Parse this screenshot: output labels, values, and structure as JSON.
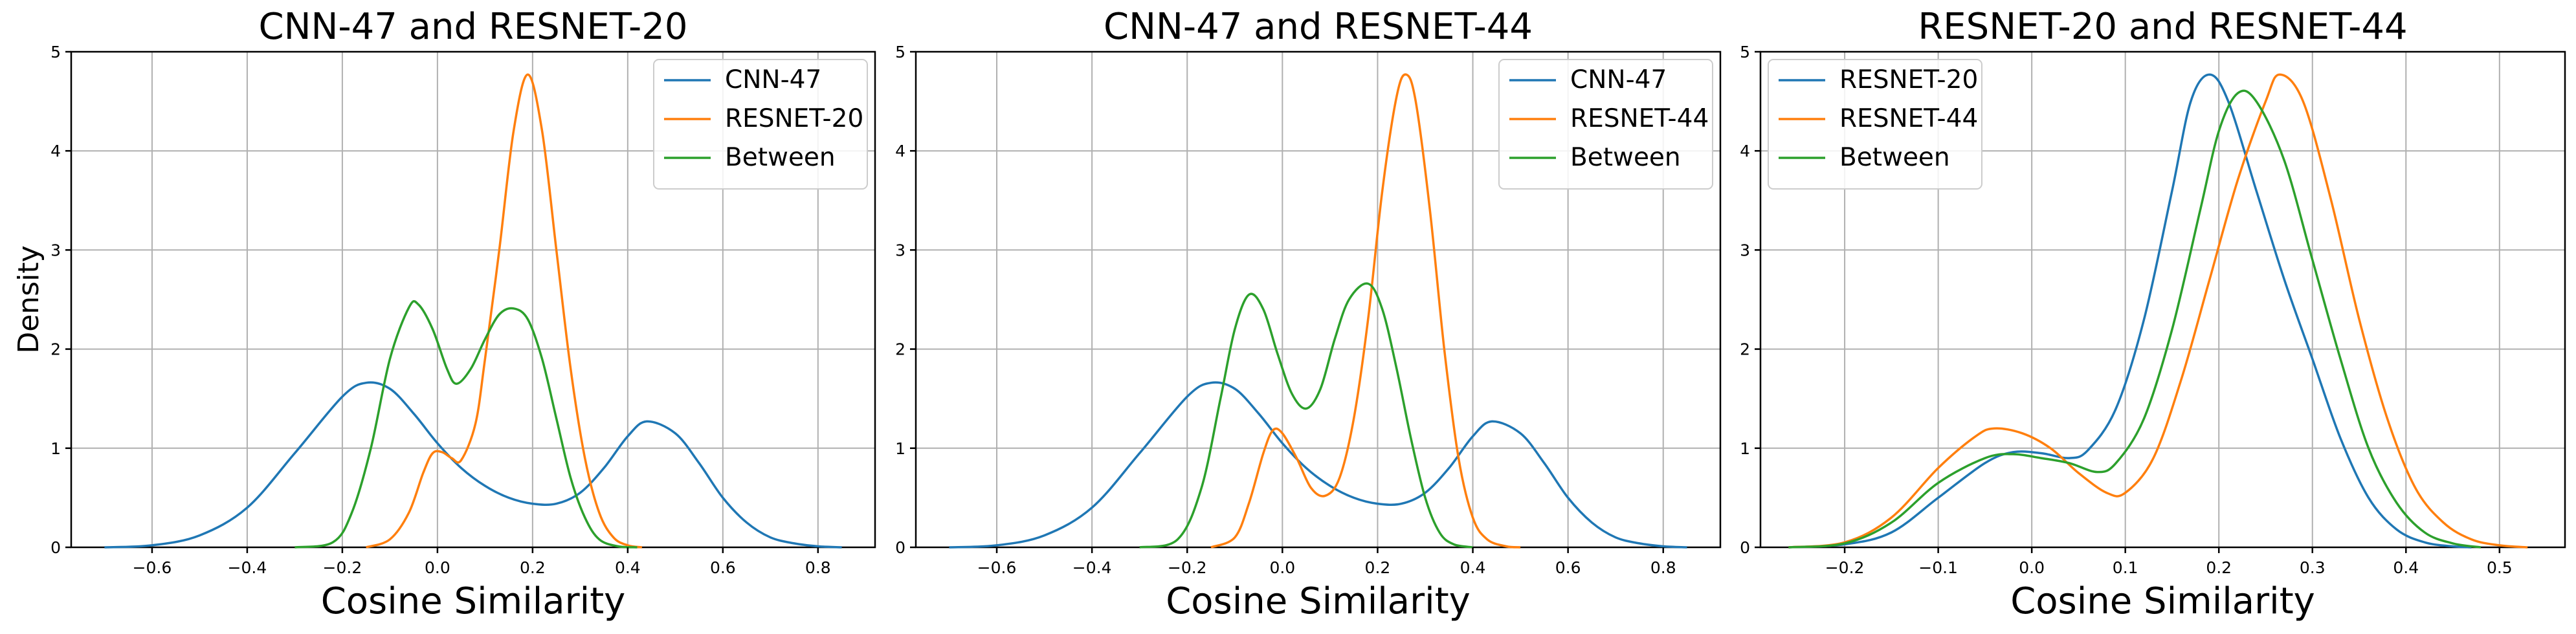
{
  "chart_data": [
    {
      "type": "line",
      "title": "CNN-47 and RESNET-20",
      "xlabel": "Cosine Similarity",
      "ylabel": "Density",
      "xlim": [
        -0.77,
        0.92
      ],
      "ylim": [
        0,
        5
      ],
      "xticks": [
        "−0.6",
        "−0.4",
        "−0.2",
        "0.0",
        "0.2",
        "0.4",
        "0.6",
        "0.8"
      ],
      "xtick_values": [
        -0.6,
        -0.4,
        -0.2,
        0.0,
        0.2,
        0.4,
        0.6,
        0.8
      ],
      "yticks": [
        "0",
        "1",
        "2",
        "3",
        "4",
        "5"
      ],
      "ytick_values": [
        0,
        1,
        2,
        3,
        4,
        5
      ],
      "grid": true,
      "legend_position": "upper-right",
      "series": [
        {
          "name": "CNN-47",
          "color": "#1f77b4",
          "points": [
            [
              -0.7,
              0.0
            ],
            [
              -0.6,
              0.02
            ],
            [
              -0.5,
              0.12
            ],
            [
              -0.4,
              0.4
            ],
            [
              -0.3,
              0.95
            ],
            [
              -0.2,
              1.52
            ],
            [
              -0.15,
              1.66
            ],
            [
              -0.1,
              1.6
            ],
            [
              -0.05,
              1.35
            ],
            [
              0.0,
              1.05
            ],
            [
              0.05,
              0.8
            ],
            [
              0.1,
              0.62
            ],
            [
              0.15,
              0.5
            ],
            [
              0.2,
              0.44
            ],
            [
              0.25,
              0.44
            ],
            [
              0.3,
              0.55
            ],
            [
              0.35,
              0.8
            ],
            [
              0.4,
              1.12
            ],
            [
              0.44,
              1.27
            ],
            [
              0.5,
              1.15
            ],
            [
              0.55,
              0.85
            ],
            [
              0.6,
              0.5
            ],
            [
              0.65,
              0.25
            ],
            [
              0.7,
              0.1
            ],
            [
              0.75,
              0.04
            ],
            [
              0.8,
              0.01
            ],
            [
              0.85,
              0.0
            ]
          ]
        },
        {
          "name": "RESNET-20",
          "color": "#ff7f0e",
          "points": [
            [
              -0.15,
              0.0
            ],
            [
              -0.1,
              0.08
            ],
            [
              -0.06,
              0.35
            ],
            [
              -0.03,
              0.75
            ],
            [
              -0.01,
              0.95
            ],
            [
              0.01,
              0.96
            ],
            [
              0.03,
              0.9
            ],
            [
              0.05,
              0.88
            ],
            [
              0.08,
              1.25
            ],
            [
              0.1,
              1.9
            ],
            [
              0.13,
              3.0
            ],
            [
              0.16,
              4.2
            ],
            [
              0.19,
              4.77
            ],
            [
              0.22,
              4.2
            ],
            [
              0.25,
              3.0
            ],
            [
              0.28,
              1.8
            ],
            [
              0.31,
              0.9
            ],
            [
              0.34,
              0.35
            ],
            [
              0.37,
              0.1
            ],
            [
              0.4,
              0.02
            ],
            [
              0.43,
              0.0
            ]
          ]
        },
        {
          "name": "Between",
          "color": "#2ca02c",
          "points": [
            [
              -0.3,
              0.0
            ],
            [
              -0.22,
              0.05
            ],
            [
              -0.18,
              0.35
            ],
            [
              -0.14,
              1.0
            ],
            [
              -0.1,
              1.9
            ],
            [
              -0.06,
              2.42
            ],
            [
              -0.04,
              2.45
            ],
            [
              -0.01,
              2.2
            ],
            [
              0.02,
              1.8
            ],
            [
              0.04,
              1.65
            ],
            [
              0.07,
              1.8
            ],
            [
              0.1,
              2.1
            ],
            [
              0.13,
              2.35
            ],
            [
              0.16,
              2.41
            ],
            [
              0.19,
              2.3
            ],
            [
              0.22,
              1.9
            ],
            [
              0.25,
              1.3
            ],
            [
              0.28,
              0.7
            ],
            [
              0.31,
              0.3
            ],
            [
              0.34,
              0.08
            ],
            [
              0.38,
              0.01
            ],
            [
              0.42,
              0.0
            ]
          ]
        }
      ]
    },
    {
      "type": "line",
      "title": "CNN-47 and RESNET-44",
      "xlabel": "Cosine Similarity",
      "ylabel": "",
      "xlim": [
        -0.77,
        0.92
      ],
      "ylim": [
        0,
        5
      ],
      "xticks": [
        "−0.6",
        "−0.4",
        "−0.2",
        "0.0",
        "0.2",
        "0.4",
        "0.6",
        "0.8"
      ],
      "xtick_values": [
        -0.6,
        -0.4,
        -0.2,
        0.0,
        0.2,
        0.4,
        0.6,
        0.8
      ],
      "yticks": [
        "0",
        "1",
        "2",
        "3",
        "4",
        "5"
      ],
      "ytick_values": [
        0,
        1,
        2,
        3,
        4,
        5
      ],
      "grid": true,
      "legend_position": "upper-right",
      "series": [
        {
          "name": "CNN-47",
          "color": "#1f77b4",
          "points": [
            [
              -0.7,
              0.0
            ],
            [
              -0.6,
              0.02
            ],
            [
              -0.5,
              0.12
            ],
            [
              -0.4,
              0.4
            ],
            [
              -0.3,
              0.95
            ],
            [
              -0.2,
              1.52
            ],
            [
              -0.15,
              1.66
            ],
            [
              -0.1,
              1.6
            ],
            [
              -0.05,
              1.35
            ],
            [
              0.0,
              1.05
            ],
            [
              0.05,
              0.8
            ],
            [
              0.1,
              0.62
            ],
            [
              0.15,
              0.5
            ],
            [
              0.2,
              0.44
            ],
            [
              0.25,
              0.44
            ],
            [
              0.3,
              0.55
            ],
            [
              0.35,
              0.8
            ],
            [
              0.4,
              1.12
            ],
            [
              0.44,
              1.27
            ],
            [
              0.5,
              1.15
            ],
            [
              0.55,
              0.85
            ],
            [
              0.6,
              0.5
            ],
            [
              0.65,
              0.25
            ],
            [
              0.7,
              0.1
            ],
            [
              0.75,
              0.04
            ],
            [
              0.8,
              0.01
            ],
            [
              0.85,
              0.0
            ]
          ]
        },
        {
          "name": "RESNET-44",
          "color": "#ff7f0e",
          "points": [
            [
              -0.15,
              0.0
            ],
            [
              -0.1,
              0.1
            ],
            [
              -0.07,
              0.45
            ],
            [
              -0.04,
              0.95
            ],
            [
              -0.02,
              1.18
            ],
            [
              0.0,
              1.15
            ],
            [
              0.03,
              0.9
            ],
            [
              0.06,
              0.6
            ],
            [
              0.09,
              0.52
            ],
            [
              0.12,
              0.7
            ],
            [
              0.15,
              1.3
            ],
            [
              0.18,
              2.3
            ],
            [
              0.21,
              3.6
            ],
            [
              0.24,
              4.55
            ],
            [
              0.26,
              4.77
            ],
            [
              0.28,
              4.5
            ],
            [
              0.31,
              3.4
            ],
            [
              0.34,
              2.0
            ],
            [
              0.37,
              0.9
            ],
            [
              0.4,
              0.3
            ],
            [
              0.43,
              0.08
            ],
            [
              0.47,
              0.01
            ],
            [
              0.5,
              0.0
            ]
          ]
        },
        {
          "name": "Between",
          "color": "#2ca02c",
          "points": [
            [
              -0.3,
              0.0
            ],
            [
              -0.22,
              0.08
            ],
            [
              -0.17,
              0.6
            ],
            [
              -0.13,
              1.5
            ],
            [
              -0.1,
              2.2
            ],
            [
              -0.07,
              2.55
            ],
            [
              -0.04,
              2.4
            ],
            [
              -0.01,
              1.95
            ],
            [
              0.02,
              1.55
            ],
            [
              0.05,
              1.4
            ],
            [
              0.08,
              1.6
            ],
            [
              0.11,
              2.1
            ],
            [
              0.14,
              2.5
            ],
            [
              0.18,
              2.66
            ],
            [
              0.21,
              2.4
            ],
            [
              0.24,
              1.8
            ],
            [
              0.27,
              1.1
            ],
            [
              0.3,
              0.5
            ],
            [
              0.33,
              0.15
            ],
            [
              0.36,
              0.03
            ],
            [
              0.4,
              0.0
            ]
          ]
        }
      ]
    },
    {
      "type": "line",
      "title": "RESNET-20 and RESNET-44",
      "xlabel": "Cosine Similarity",
      "ylabel": "",
      "xlim": [
        -0.29,
        0.57
      ],
      "ylim": [
        0,
        5
      ],
      "xticks": [
        "−0.2",
        "−0.1",
        "0.0",
        "0.1",
        "0.2",
        "0.3",
        "0.4",
        "0.5"
      ],
      "xtick_values": [
        -0.2,
        -0.1,
        0.0,
        0.1,
        0.2,
        0.3,
        0.4,
        0.5
      ],
      "yticks": [
        "0",
        "1",
        "2",
        "3",
        "4",
        "5"
      ],
      "ytick_values": [
        0,
        1,
        2,
        3,
        4,
        5
      ],
      "grid": true,
      "legend_position": "upper-left",
      "series": [
        {
          "name": "RESNET-20",
          "color": "#1f77b4",
          "points": [
            [
              -0.26,
              0.0
            ],
            [
              -0.2,
              0.03
            ],
            [
              -0.15,
              0.15
            ],
            [
              -0.1,
              0.5
            ],
            [
              -0.05,
              0.85
            ],
            [
              -0.02,
              0.96
            ],
            [
              0.01,
              0.95
            ],
            [
              0.04,
              0.9
            ],
            [
              0.06,
              0.98
            ],
            [
              0.09,
              1.4
            ],
            [
              0.12,
              2.3
            ],
            [
              0.15,
              3.6
            ],
            [
              0.17,
              4.5
            ],
            [
              0.19,
              4.77
            ],
            [
              0.21,
              4.5
            ],
            [
              0.24,
              3.6
            ],
            [
              0.27,
              2.7
            ],
            [
              0.3,
              1.9
            ],
            [
              0.33,
              1.1
            ],
            [
              0.36,
              0.5
            ],
            [
              0.39,
              0.18
            ],
            [
              0.42,
              0.05
            ],
            [
              0.45,
              0.01
            ],
            [
              0.47,
              0.0
            ]
          ]
        },
        {
          "name": "RESNET-44",
          "color": "#ff7f0e",
          "points": [
            [
              -0.26,
              0.0
            ],
            [
              -0.2,
              0.05
            ],
            [
              -0.15,
              0.3
            ],
            [
              -0.1,
              0.8
            ],
            [
              -0.06,
              1.12
            ],
            [
              -0.04,
              1.2
            ],
            [
              -0.01,
              1.15
            ],
            [
              0.02,
              1.0
            ],
            [
              0.05,
              0.75
            ],
            [
              0.08,
              0.55
            ],
            [
              0.1,
              0.55
            ],
            [
              0.13,
              0.9
            ],
            [
              0.16,
              1.7
            ],
            [
              0.19,
              2.7
            ],
            [
              0.22,
              3.7
            ],
            [
              0.25,
              4.5
            ],
            [
              0.265,
              4.77
            ],
            [
              0.29,
              4.5
            ],
            [
              0.32,
              3.5
            ],
            [
              0.35,
              2.3
            ],
            [
              0.38,
              1.3
            ],
            [
              0.41,
              0.6
            ],
            [
              0.44,
              0.25
            ],
            [
              0.47,
              0.08
            ],
            [
              0.5,
              0.02
            ],
            [
              0.53,
              0.0
            ]
          ]
        },
        {
          "name": "Between",
          "color": "#2ca02c",
          "points": [
            [
              -0.26,
              0.0
            ],
            [
              -0.2,
              0.04
            ],
            [
              -0.15,
              0.25
            ],
            [
              -0.1,
              0.65
            ],
            [
              -0.05,
              0.9
            ],
            [
              -0.02,
              0.94
            ],
            [
              0.01,
              0.9
            ],
            [
              0.04,
              0.85
            ],
            [
              0.07,
              0.76
            ],
            [
              0.09,
              0.85
            ],
            [
              0.12,
              1.3
            ],
            [
              0.15,
              2.2
            ],
            [
              0.18,
              3.4
            ],
            [
              0.2,
              4.2
            ],
            [
              0.22,
              4.58
            ],
            [
              0.24,
              4.5
            ],
            [
              0.27,
              3.9
            ],
            [
              0.3,
              2.9
            ],
            [
              0.33,
              1.9
            ],
            [
              0.36,
              1.0
            ],
            [
              0.39,
              0.45
            ],
            [
              0.42,
              0.15
            ],
            [
              0.45,
              0.04
            ],
            [
              0.48,
              0.0
            ]
          ]
        }
      ]
    }
  ]
}
